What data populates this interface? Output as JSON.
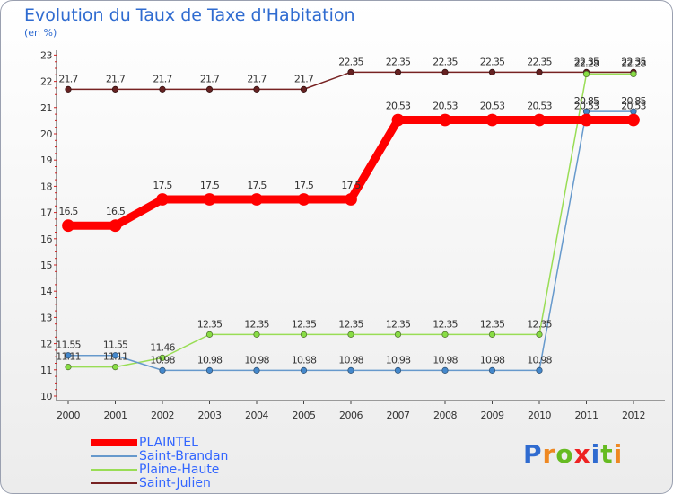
{
  "title": "Evolution du Taux de Taxe d'Habitation",
  "unit": "(en %)",
  "logo_text": "Proxiti",
  "chart_data": {
    "type": "line",
    "title": "Evolution du Taux de Taxe d'Habitation",
    "ylabel": "(en %)",
    "xlabel": "",
    "ylim": [
      10,
      23
    ],
    "grid": false,
    "legend_placement": "bottom-left",
    "categories": [
      "2000",
      "2001",
      "2002",
      "2003",
      "2004",
      "2005",
      "2006",
      "2007",
      "2008",
      "2009",
      "2010",
      "2011",
      "2012"
    ],
    "y_ticks": [
      "10",
      "11",
      "12",
      "13",
      "14",
      "15",
      "16",
      "17",
      "18",
      "19",
      "20",
      "21",
      "22",
      "23"
    ],
    "series": [
      {
        "name": "PLAINTEL",
        "color": "#ff0000",
        "values": [
          16.5,
          16.5,
          17.5,
          17.5,
          17.5,
          17.5,
          17.5,
          20.53,
          20.53,
          20.53,
          20.53,
          20.53,
          20.53
        ],
        "labels": [
          "16.5",
          "16.5",
          "17.5",
          "17.5",
          "17.5",
          "17.5",
          "17.5",
          "20.53",
          "20.53",
          "20.53",
          "20.53",
          "20.53",
          "20.53"
        ]
      },
      {
        "name": "Saint-Brandan",
        "color": "#6699cc",
        "values": [
          11.55,
          11.55,
          10.98,
          10.98,
          10.98,
          10.98,
          10.98,
          10.98,
          10.98,
          10.98,
          10.98,
          20.85,
          20.85
        ],
        "labels": [
          "11.55",
          "11.55",
          "10.98",
          "10.98",
          "10.98",
          "10.98",
          "10.98",
          "10.98",
          "10.98",
          "10.98",
          "10.98",
          "20.85",
          "20.85"
        ]
      },
      {
        "name": "Plaine-Haute",
        "color": "#99dd55",
        "values": [
          11.11,
          11.11,
          11.46,
          12.35,
          12.35,
          12.35,
          12.35,
          12.35,
          12.35,
          12.35,
          12.35,
          22.28,
          22.28
        ],
        "labels": [
          "11.11",
          "11.11",
          "11.46",
          "12.35",
          "12.35",
          "12.35",
          "12.35",
          "12.35",
          "12.35",
          "12.35",
          "12.35",
          "22.28",
          "22.28"
        ]
      },
      {
        "name": "Saint-Julien",
        "color": "#772222",
        "values": [
          21.7,
          21.7,
          21.7,
          21.7,
          21.7,
          21.7,
          22.35,
          22.35,
          22.35,
          22.35,
          22.35,
          22.35,
          22.35
        ],
        "labels": [
          "21.7",
          "21.7",
          "21.7",
          "21.7",
          "21.7",
          "21.7",
          "22.35",
          "22.35",
          "22.35",
          "22.35",
          "22.35",
          "22.35",
          "22.35"
        ]
      }
    ]
  }
}
